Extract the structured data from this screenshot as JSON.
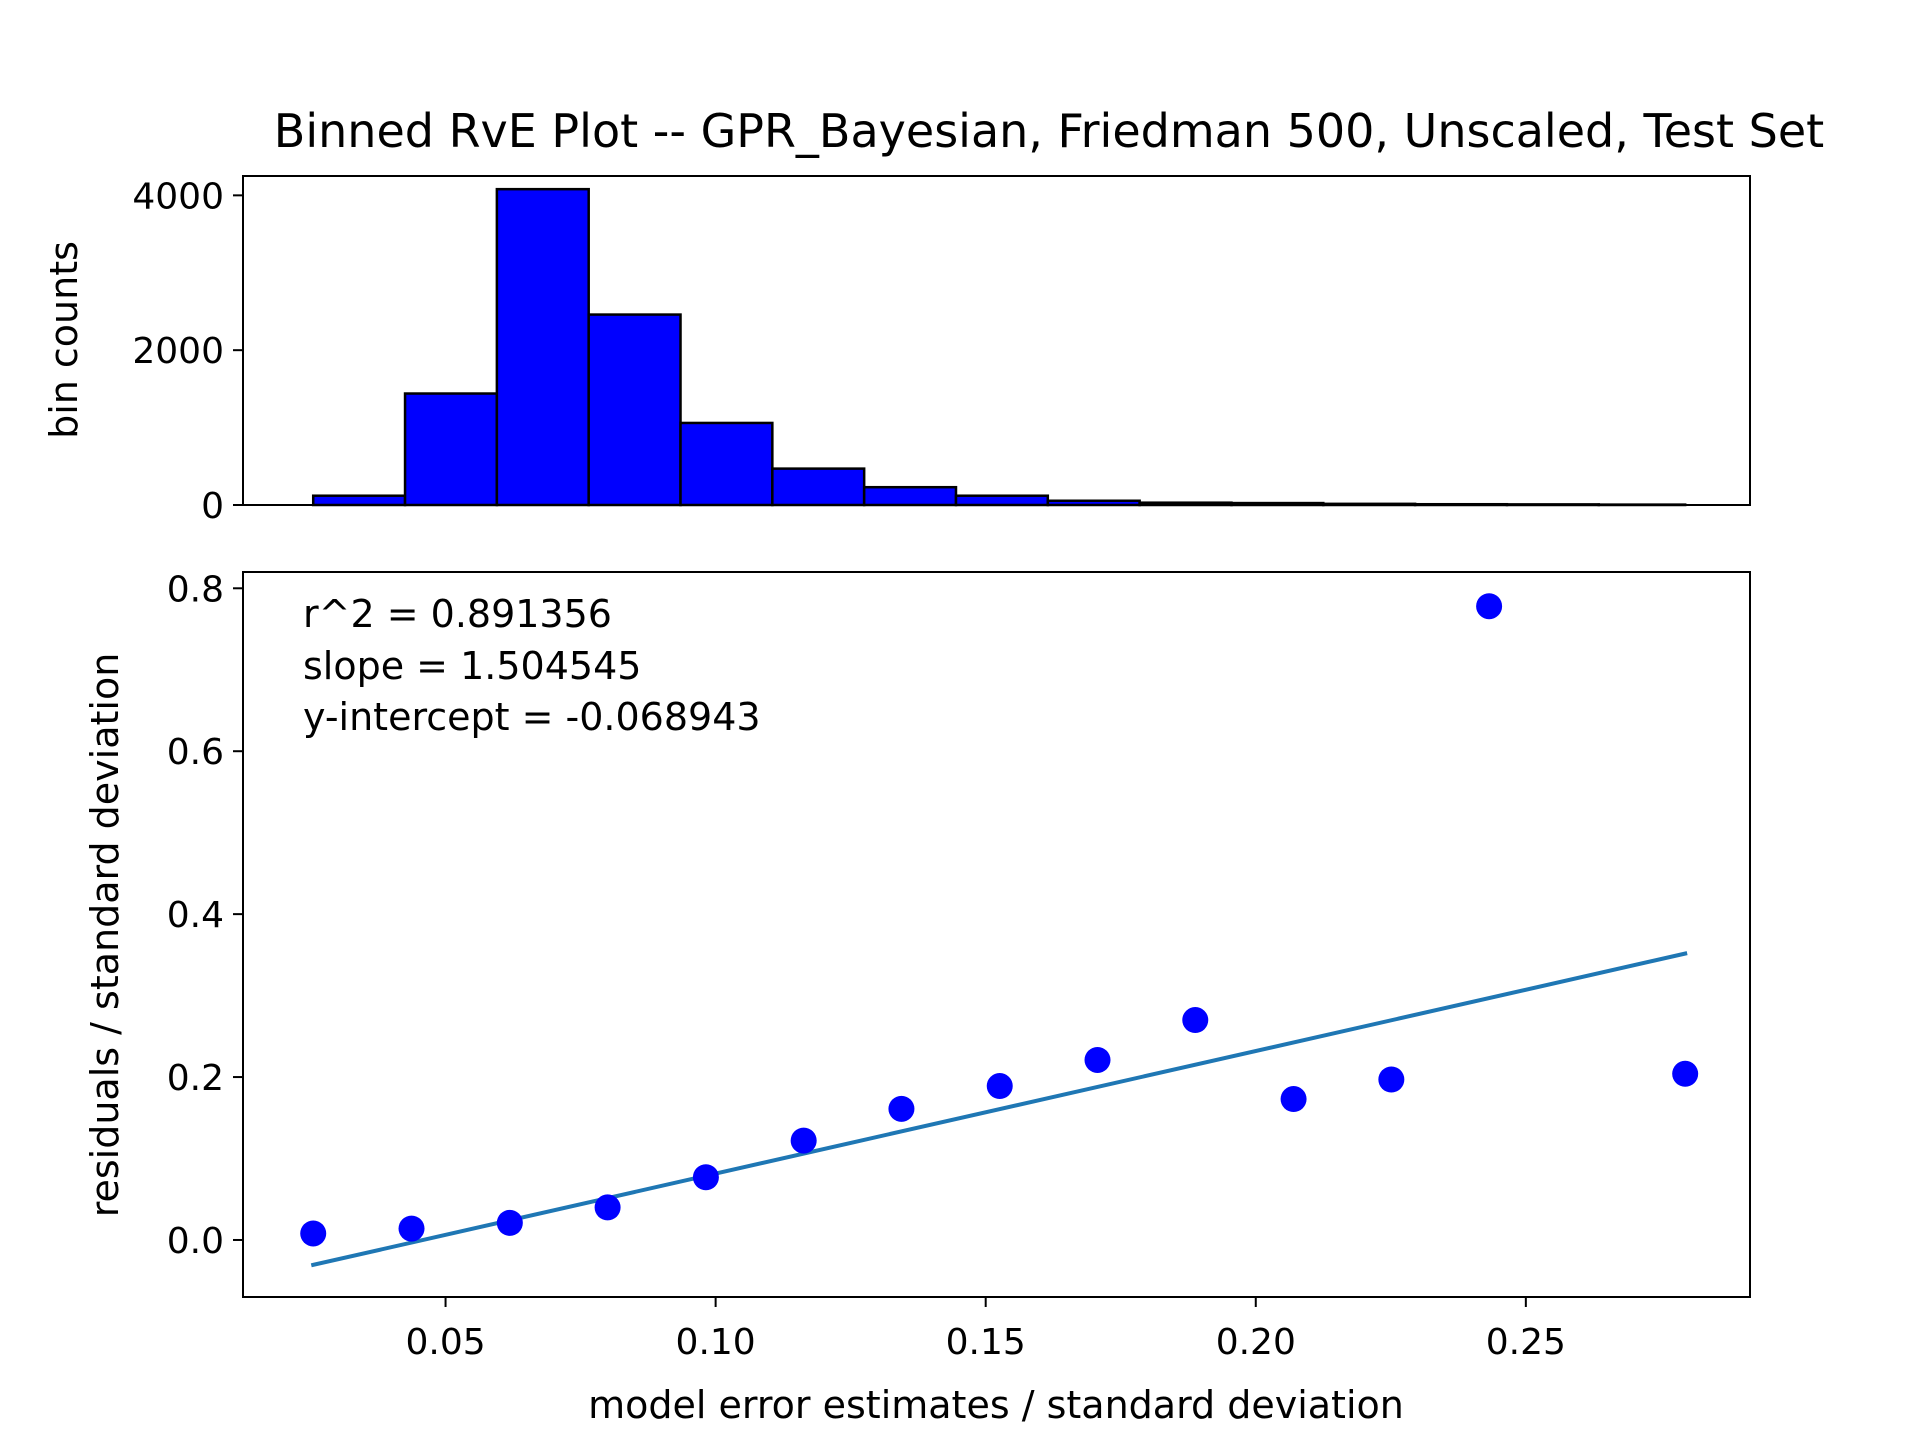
{
  "chart_data": [
    {
      "type": "bar",
      "title": "Binned RvE Plot -- GPR_Bayesian, Friedman 500, Unscaled, Test Set",
      "xlabel": "",
      "ylabel": "bin counts",
      "ylim": [
        0,
        4250
      ],
      "yticks": [
        0,
        2000,
        4000
      ],
      "ytick_labels": [
        "0",
        "2000",
        "4000"
      ],
      "bar_color": "#0000ff",
      "bar_edge_color": "#000000",
      "bins": [
        {
          "x0": 0.0255,
          "x1": 0.0425,
          "count": 120
        },
        {
          "x0": 0.0425,
          "x1": 0.0595,
          "count": 1440
        },
        {
          "x0": 0.0595,
          "x1": 0.0765,
          "count": 4080
        },
        {
          "x0": 0.0765,
          "x1": 0.0935,
          "count": 2460
        },
        {
          "x0": 0.0935,
          "x1": 0.1105,
          "count": 1060
        },
        {
          "x0": 0.1105,
          "x1": 0.1275,
          "count": 470
        },
        {
          "x0": 0.1275,
          "x1": 0.1445,
          "count": 230
        },
        {
          "x0": 0.1445,
          "x1": 0.1615,
          "count": 120
        },
        {
          "x0": 0.1615,
          "x1": 0.1785,
          "count": 55
        },
        {
          "x0": 0.1785,
          "x1": 0.1955,
          "count": 30
        },
        {
          "x0": 0.1955,
          "x1": 0.2125,
          "count": 25
        },
        {
          "x0": 0.2125,
          "x1": 0.2295,
          "count": 15
        },
        {
          "x0": 0.2295,
          "x1": 0.2465,
          "count": 10
        },
        {
          "x0": 0.2465,
          "x1": 0.2635,
          "count": 8
        },
        {
          "x0": 0.2635,
          "x1": 0.2795,
          "count": 5
        }
      ]
    },
    {
      "type": "scatter",
      "xlabel": "model error estimates / standard deviation",
      "ylabel": "residuals / standard deviation",
      "xlim": [
        0.0125,
        0.2915
      ],
      "ylim": [
        -0.07,
        0.82
      ],
      "xticks": [
        0.05,
        0.1,
        0.15,
        0.2,
        0.25
      ],
      "xtick_labels": [
        "0.05",
        "0.10",
        "0.15",
        "0.20",
        "0.25"
      ],
      "yticks": [
        0.0,
        0.2,
        0.4,
        0.6,
        0.8
      ],
      "ytick_labels": [
        "0.0",
        "0.2",
        "0.4",
        "0.6",
        "0.8"
      ],
      "point_color": "#0000ff",
      "line_color": "#1f77b4",
      "points": [
        {
          "x": 0.0255,
          "y": 0.008
        },
        {
          "x": 0.0437,
          "y": 0.014
        },
        {
          "x": 0.0619,
          "y": 0.021
        },
        {
          "x": 0.08,
          "y": 0.04
        },
        {
          "x": 0.0982,
          "y": 0.077
        },
        {
          "x": 0.1163,
          "y": 0.122
        },
        {
          "x": 0.1344,
          "y": 0.161
        },
        {
          "x": 0.1526,
          "y": 0.189
        },
        {
          "x": 0.1707,
          "y": 0.221
        },
        {
          "x": 0.1888,
          "y": 0.27
        },
        {
          "x": 0.207,
          "y": 0.173
        },
        {
          "x": 0.2251,
          "y": 0.197
        },
        {
          "x": 0.2432,
          "y": 0.778
        },
        {
          "x": 0.2795,
          "y": 0.204
        }
      ],
      "fit": {
        "slope": 1.504545,
        "intercept": -0.068943,
        "x_range": [
          0.0255,
          0.2795
        ]
      },
      "annotations": [
        "r^2 = 0.891356",
        "slope = 1.504545",
        "y-intercept = -0.068943"
      ]
    }
  ]
}
